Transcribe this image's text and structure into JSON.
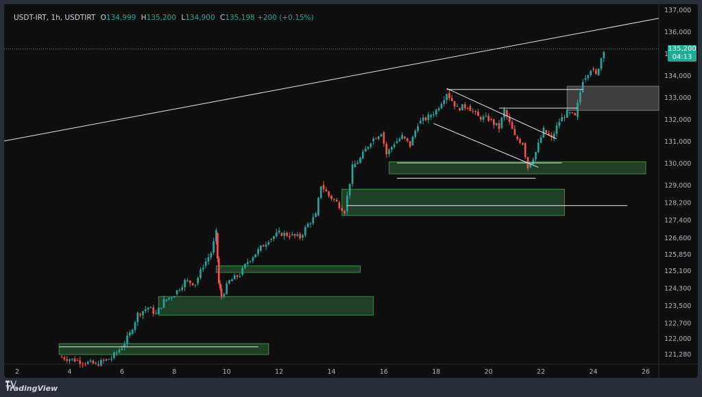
{
  "header": {
    "symbol": "USDT-IRT, 1h, USDTIRT",
    "open_label": "O",
    "open": "134,999",
    "high_label": "H",
    "high": "135,200",
    "low_label": "L",
    "low": "134,900",
    "close_label": "C",
    "close": "135,198",
    "change": "+200 (+0.15%)"
  },
  "current_price": {
    "value": "135,200",
    "countdown": "04:13"
  },
  "footer": {
    "brand": "TradingView",
    "logo_icon": "tradingview-logo-icon"
  },
  "colors": {
    "up": "#26a69a",
    "down": "#ef5350",
    "zone_green": "#26502f",
    "zone_gray": "#4a4a4a",
    "line": "#e8e8e8",
    "axis_text": "#b2b5be"
  },
  "chart_data": {
    "type": "candlestick",
    "x": [
      2,
      4,
      6,
      8,
      10,
      12,
      14,
      16,
      18,
      20,
      22,
      24,
      26
    ],
    "y_ticks": [
      "121,280",
      "122,000",
      "122,700",
      "123,500",
      "124,300",
      "125,100",
      "125,850",
      "126,600",
      "127,400",
      "128,200",
      "129,000",
      "130,000",
      "131,000",
      "132,000",
      "133,000",
      "134,000",
      "135,000",
      "136,000",
      "137,000"
    ],
    "ylim": [
      121000,
      137000
    ],
    "xlim": [
      1.5,
      26.5
    ],
    "path": [
      [
        3.6,
        121150
      ],
      [
        4.2,
        121000
      ],
      [
        5.0,
        120800
      ],
      [
        5.6,
        121100
      ],
      [
        6.0,
        121600
      ],
      [
        6.3,
        122200
      ],
      [
        6.6,
        123100
      ],
      [
        7.0,
        123400
      ],
      [
        7.3,
        123100
      ],
      [
        7.6,
        123700
      ],
      [
        8.0,
        124000
      ],
      [
        8.4,
        124600
      ],
      [
        8.8,
        124500
      ],
      [
        9.1,
        125300
      ],
      [
        9.4,
        125900
      ],
      [
        9.6,
        126800
      ],
      [
        9.7,
        124500
      ],
      [
        9.8,
        123900
      ],
      [
        10.1,
        124600
      ],
      [
        10.5,
        124900
      ],
      [
        10.8,
        125500
      ],
      [
        11.2,
        126000
      ],
      [
        11.6,
        126500
      ],
      [
        12.0,
        126800
      ],
      [
        12.4,
        126700
      ],
      [
        12.8,
        126600
      ],
      [
        13.1,
        127200
      ],
      [
        13.4,
        127600
      ],
      [
        13.6,
        129000
      ],
      [
        13.9,
        128500
      ],
      [
        14.2,
        128200
      ],
      [
        14.5,
        127800
      ],
      [
        14.8,
        129800
      ],
      [
        15.1,
        130200
      ],
      [
        15.5,
        131000
      ],
      [
        15.9,
        131400
      ],
      [
        16.1,
        130400
      ],
      [
        16.4,
        130900
      ],
      [
        16.7,
        131200
      ],
      [
        17.0,
        130800
      ],
      [
        17.3,
        131800
      ],
      [
        17.7,
        132100
      ],
      [
        18.0,
        132400
      ],
      [
        18.4,
        133200
      ],
      [
        18.8,
        132500
      ],
      [
        19.2,
        132600
      ],
      [
        19.6,
        132100
      ],
      [
        20.0,
        132000
      ],
      [
        20.4,
        131600
      ],
      [
        20.6,
        132400
      ],
      [
        21.0,
        131200
      ],
      [
        21.3,
        130900
      ],
      [
        21.5,
        129800
      ],
      [
        21.8,
        130500
      ],
      [
        22.1,
        131500
      ],
      [
        22.4,
        131100
      ],
      [
        22.7,
        131900
      ],
      [
        23.0,
        132300
      ],
      [
        23.3,
        132100
      ],
      [
        23.6,
        133800
      ],
      [
        23.9,
        134300
      ],
      [
        24.1,
        134000
      ],
      [
        24.4,
        135200
      ]
    ],
    "annotations": {
      "trendline": [
        [
          1.5,
          131000
        ],
        [
          26.5,
          136600
        ]
      ],
      "zones_green": [
        [
          3.6,
          11.6,
          121250,
          121750
        ],
        [
          7.4,
          15.6,
          123050,
          123900
        ],
        [
          9.6,
          15.1,
          125000,
          125300
        ],
        [
          14.4,
          22.9,
          127600,
          128800
        ],
        [
          16.2,
          26.0,
          129500,
          130050
        ]
      ],
      "zone_gray": [
        23.0,
        26.5,
        132400,
        133500
      ],
      "levels": [
        [
          3.6,
          11.2,
          121600
        ],
        [
          14.6,
          25.3,
          128050
        ],
        [
          18.4,
          23.6,
          133350
        ],
        [
          20.4,
          23.4,
          132500
        ],
        [
          16.5,
          22.8,
          130000
        ],
        [
          16.5,
          21.8,
          129300
        ]
      ],
      "channel": [
        [
          [
            18.4,
            133400
          ],
          [
            22.6,
            131100
          ]
        ],
        [
          [
            17.9,
            131800
          ],
          [
            21.9,
            129800
          ]
        ]
      ]
    }
  }
}
